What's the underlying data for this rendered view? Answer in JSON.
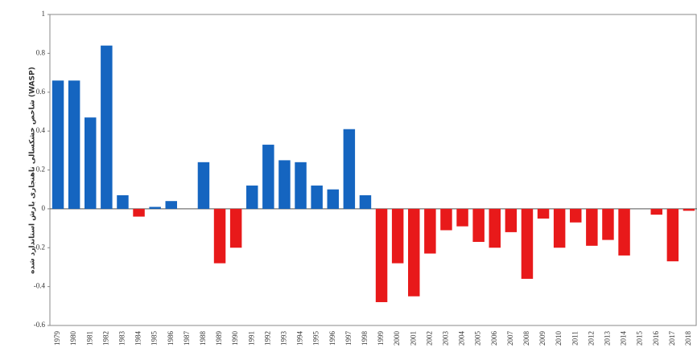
{
  "chart_data": {
    "type": "bar",
    "y_label": "شاخص خشکسالی ناهنجاری بارش استاندارد شده (WASP)",
    "categories": [
      "1979",
      "1980",
      "1981",
      "1982",
      "1983",
      "1984",
      "1985",
      "1986",
      "1987",
      "1988",
      "1989",
      "1990",
      "1991",
      "1992",
      "1993",
      "1994",
      "1995",
      "1996",
      "1997",
      "1998",
      "1999",
      "2000",
      "2001",
      "2002",
      "2003",
      "2004",
      "2005",
      "2006",
      "2007",
      "2008",
      "2009",
      "2010",
      "2011",
      "2012",
      "2013",
      "2014",
      "2015",
      "2016",
      "2017",
      "2018"
    ],
    "values": [
      0.66,
      0.66,
      0.47,
      0.84,
      0.07,
      -0.04,
      0.01,
      0.04,
      0,
      0.24,
      -0.28,
      -0.2,
      0.12,
      0.33,
      0.25,
      0.24,
      0.12,
      0.1,
      0.41,
      0.07,
      -0.48,
      -0.28,
      -0.45,
      -0.23,
      -0.11,
      -0.09,
      -0.17,
      -0.2,
      -0.12,
      -0.36,
      -0.05,
      -0.2,
      -0.07,
      -0.19,
      -0.16,
      -0.24,
      0,
      -0.03,
      -0.27,
      -0.01
    ],
    "positive_color": "#1565c0",
    "negative_color": "#e8191a",
    "ylim": [
      -0.6,
      1
    ],
    "yticks": [
      -0.6,
      -0.4,
      -0.2,
      0,
      0.2,
      0.4,
      0.6,
      0.8,
      1
    ],
    "grid": false
  }
}
